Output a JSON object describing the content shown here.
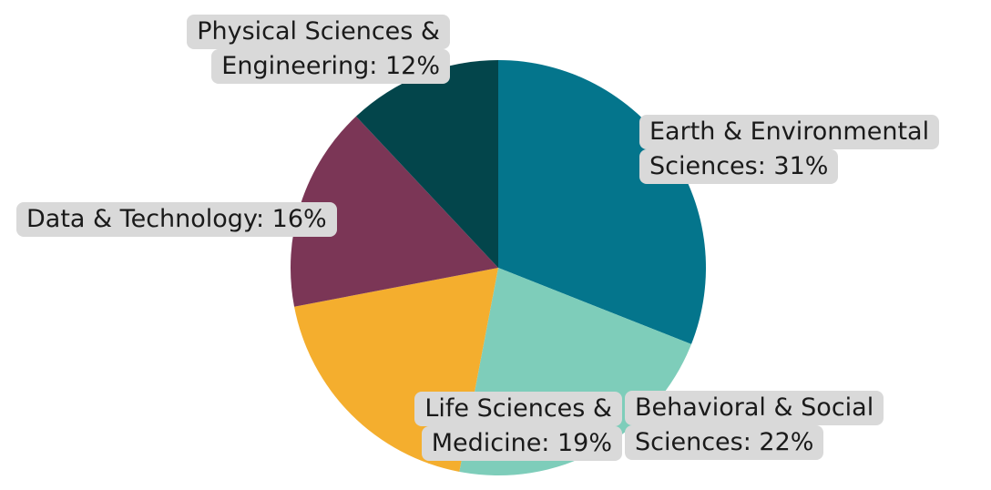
{
  "chart_data": {
    "type": "pie",
    "title": "",
    "start_angle_deg": 0,
    "direction": "clockwise",
    "slices": [
      {
        "label_lines": [
          "Earth & Environmental",
          "Sciences: 31%"
        ],
        "name": "Earth & Environmental Sciences",
        "value": 31,
        "color": "#04758c"
      },
      {
        "label_lines": [
          "Behavioral & Social",
          "Sciences: 22%"
        ],
        "name": "Behavioral & Social Sciences",
        "value": 22,
        "color": "#7ecdba"
      },
      {
        "label_lines": [
          "Life Sciences &",
          "Medicine: 19%"
        ],
        "name": "Life Sciences & Medicine",
        "value": 19,
        "color": "#f4ae2e"
      },
      {
        "label_lines": [
          "Data & Technology: 16%"
        ],
        "name": "Data & Technology",
        "value": 16,
        "color": "#7b3656"
      },
      {
        "label_lines": [
          "Physical Sciences &",
          "Engineering: 12%"
        ],
        "name": "Physical Sciences & Engineering",
        "value": 12,
        "color": "#03454b"
      }
    ],
    "label_background": "#d9d9d9"
  }
}
